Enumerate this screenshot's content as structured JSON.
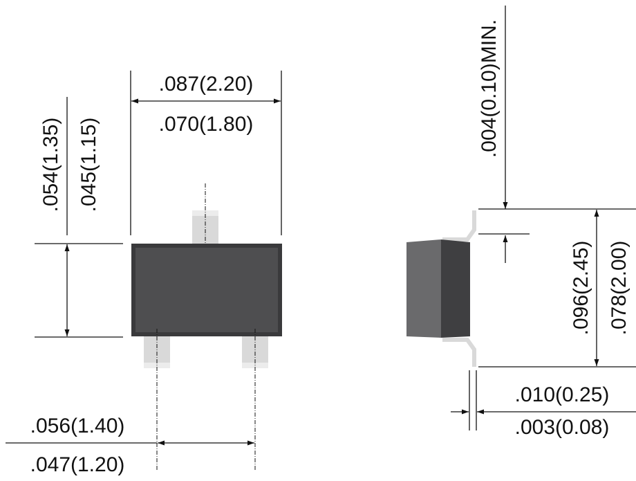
{
  "dimensions": {
    "width_max": ".087(2.20)",
    "width_min": ".070(1.80)",
    "height_max": ".054(1.35)",
    "height_min": ".045(1.15)",
    "pitch_max": ".056(1.40)",
    "pitch_min": ".047(1.20)",
    "standoff_min": ".004(0.10)MIN.",
    "overall_max": ".096(2.45)",
    "overall_min": ".078(2.00)",
    "lead_thk_max": ".010(0.25)",
    "lead_thk_min": ".003(0.08)"
  },
  "colors": {
    "body": "#4e4e50",
    "body_edge": "#3a3a3c",
    "body_side_dark": "#3f3f41",
    "body_side_light": "#6a6a6c",
    "lead": "#d9d9d9",
    "line": "#111111"
  }
}
